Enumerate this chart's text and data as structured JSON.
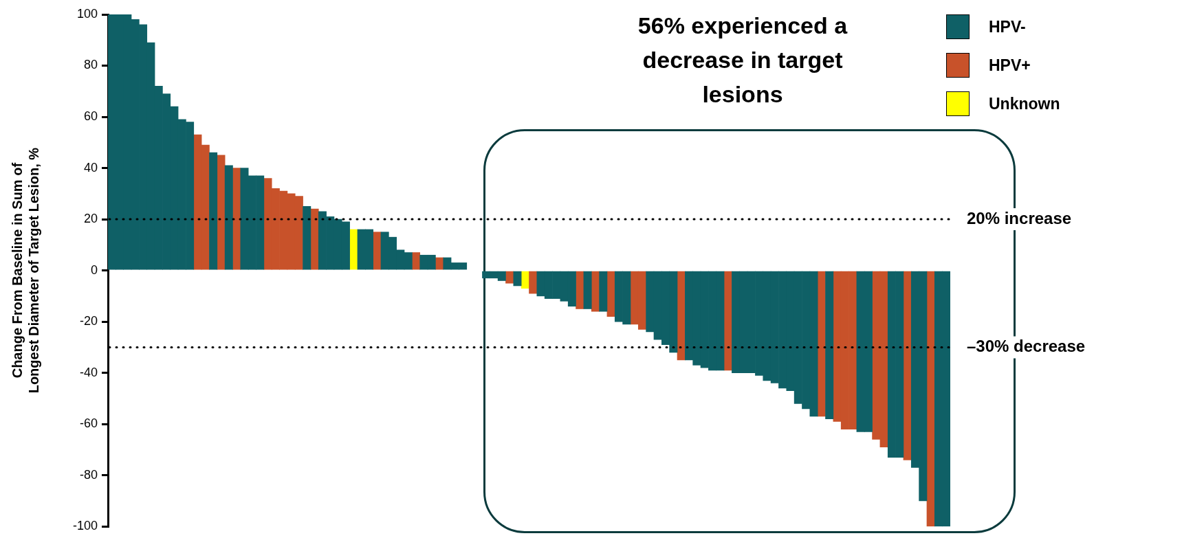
{
  "chart_data": {
    "type": "bar",
    "ylabel": "Change From Baseline in Sum of Longest Diameter of Target Lesion, %",
    "categories": [
      null,
      null,
      null,
      null,
      null,
      null,
      null,
      null,
      null,
      null,
      null,
      null,
      null,
      null,
      null,
      null,
      null,
      null,
      null,
      null,
      null,
      null,
      null,
      null,
      null,
      null,
      null,
      null,
      null,
      null,
      null,
      null,
      null,
      null,
      null,
      null,
      null,
      null,
      null,
      null,
      null,
      null,
      null,
      null,
      null,
      null,
      null,
      null,
      null,
      null,
      null,
      null,
      null,
      null,
      null,
      null,
      null,
      null,
      null,
      null,
      null,
      null,
      null,
      null,
      null,
      null,
      null,
      null,
      null,
      null,
      null,
      null,
      null,
      null,
      null,
      null,
      null,
      null,
      null,
      null,
      null,
      null,
      null,
      null,
      null,
      null,
      null,
      null,
      null,
      null,
      null,
      null,
      null,
      null,
      null,
      null,
      null,
      null,
      null,
      null,
      null,
      null,
      null,
      null,
      null,
      null,
      null,
      null
    ],
    "series": [
      {
        "name": "HPV-",
        "color": "#0f6066",
        "values": [
          100,
          100,
          100,
          98,
          96,
          89,
          72,
          69,
          64,
          59,
          58,
          null,
          null,
          46,
          null,
          41,
          null,
          40,
          37,
          37,
          null,
          null,
          null,
          null,
          null,
          25,
          null,
          23,
          21,
          20,
          19,
          null,
          16,
          16,
          null,
          15,
          13,
          8,
          7,
          null,
          6,
          6,
          null,
          5,
          3,
          3,
          null,
          null,
          -3,
          -3,
          -4,
          null,
          -6,
          null,
          null,
          -10,
          -11,
          -11,
          -12,
          -14,
          null,
          -15,
          null,
          -16,
          null,
          -20,
          -21,
          null,
          null,
          -24,
          -27,
          -29,
          -32,
          null,
          -35,
          -37,
          -38,
          -39,
          -39,
          null,
          -40,
          -40,
          -40,
          -41,
          -43,
          -44,
          -46,
          -47,
          -52,
          -54,
          -57,
          null,
          -58,
          null,
          null,
          null,
          -63,
          -63,
          null,
          null,
          -73,
          -73,
          null,
          -77,
          -90,
          null,
          -100,
          -100
        ]
      },
      {
        "name": "HPV+",
        "color": "#c8522a",
        "values": [
          null,
          null,
          null,
          null,
          null,
          null,
          null,
          null,
          null,
          null,
          null,
          53,
          49,
          null,
          45,
          null,
          40,
          null,
          null,
          null,
          36,
          32,
          31,
          30,
          29,
          null,
          24,
          null,
          null,
          null,
          null,
          null,
          null,
          null,
          15,
          null,
          null,
          null,
          null,
          7,
          null,
          null,
          5,
          null,
          null,
          null,
          null,
          null,
          null,
          null,
          null,
          -5,
          null,
          null,
          -9,
          null,
          null,
          null,
          null,
          null,
          -15,
          null,
          -16,
          null,
          -18,
          null,
          null,
          -21,
          -23,
          null,
          null,
          null,
          null,
          -35,
          null,
          null,
          null,
          null,
          null,
          -39,
          null,
          null,
          null,
          null,
          null,
          null,
          null,
          null,
          null,
          null,
          null,
          -57,
          null,
          -59,
          -62,
          -62,
          null,
          null,
          -66,
          -69,
          null,
          null,
          -74,
          null,
          null,
          -100,
          null,
          null
        ]
      },
      {
        "name": "Unknown",
        "color": "#ffff00",
        "values": [
          null,
          null,
          null,
          null,
          null,
          null,
          null,
          null,
          null,
          null,
          null,
          null,
          null,
          null,
          null,
          null,
          null,
          null,
          null,
          null,
          null,
          null,
          null,
          null,
          null,
          null,
          null,
          null,
          null,
          null,
          null,
          16,
          null,
          null,
          null,
          null,
          null,
          null,
          null,
          null,
          null,
          null,
          null,
          null,
          null,
          null,
          null,
          null,
          null,
          null,
          null,
          null,
          null,
          -7,
          null,
          null,
          null,
          null,
          null,
          null,
          null,
          null,
          null,
          null,
          null,
          null,
          null,
          null,
          null,
          null,
          null,
          null,
          null,
          null,
          null,
          null,
          null,
          null,
          null,
          null,
          null,
          null,
          null,
          null,
          null,
          null,
          null,
          null,
          null,
          null,
          null,
          null,
          null,
          null,
          null,
          null,
          null,
          null,
          null,
          null,
          null,
          null,
          null,
          null,
          null,
          null,
          null,
          null
        ]
      }
    ],
    "ylim": [
      -100,
      100
    ],
    "yticks": [
      -100,
      -80,
      -60,
      -40,
      -20,
      0,
      20,
      40,
      60,
      80,
      100
    ],
    "grid": false,
    "stacked": true,
    "legend": "top right",
    "ref_lines": [
      {
        "axis": "y",
        "value": 20,
        "label": "20% increase",
        "color": "#000000",
        "line_style": "dotted"
      },
      {
        "axis": "y",
        "value": -30,
        "label": "–30% decrease",
        "color": "#000000",
        "line_style": "dotted"
      }
    ],
    "annotations": [
      "56% experienced a decrease in target lesions"
    ]
  }
}
